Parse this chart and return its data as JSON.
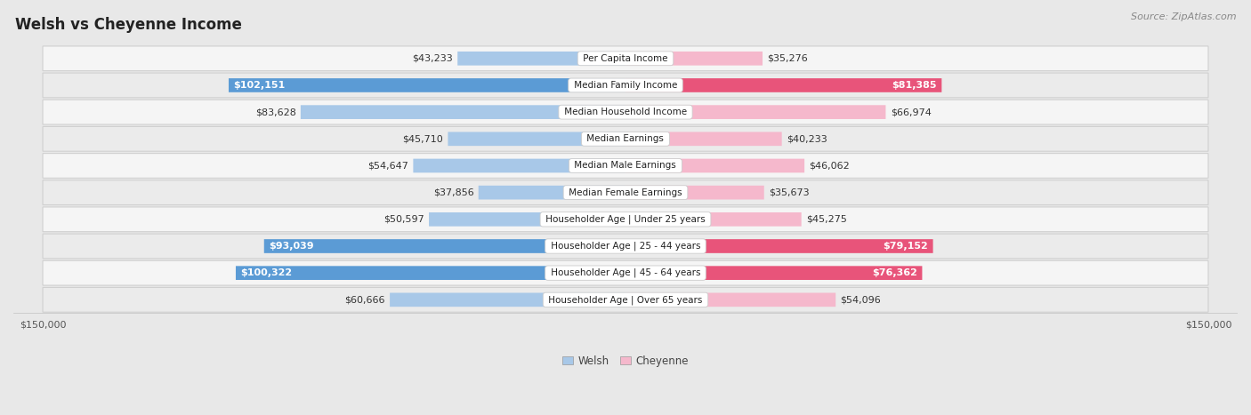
{
  "title": "Welsh vs Cheyenne Income",
  "source": "Source: ZipAtlas.com",
  "categories": [
    "Per Capita Income",
    "Median Family Income",
    "Median Household Income",
    "Median Earnings",
    "Median Male Earnings",
    "Median Female Earnings",
    "Householder Age | Under 25 years",
    "Householder Age | 25 - 44 years",
    "Householder Age | 45 - 64 years",
    "Householder Age | Over 65 years"
  ],
  "welsh_values": [
    43233,
    102151,
    83628,
    45710,
    54647,
    37856,
    50597,
    93039,
    100322,
    60666
  ],
  "cheyenne_values": [
    35276,
    81385,
    66974,
    40233,
    46062,
    35673,
    45275,
    79152,
    76362,
    54096
  ],
  "welsh_labels": [
    "$43,233",
    "$102,151",
    "$83,628",
    "$45,710",
    "$54,647",
    "$37,856",
    "$50,597",
    "$93,039",
    "$100,322",
    "$60,666"
  ],
  "cheyenne_labels": [
    "$35,276",
    "$81,385",
    "$66,974",
    "$40,233",
    "$46,062",
    "$35,673",
    "$45,275",
    "$79,152",
    "$76,362",
    "$54,096"
  ],
  "welsh_color_light": "#a8c8e8",
  "welsh_color_dark": "#5b9bd5",
  "cheyenne_color_light": "#f5b8cc",
  "cheyenne_color_dark": "#e8547a",
  "max_value": 150000,
  "fig_bg": "#e8e8e8",
  "row_bg_odd": "#f5f5f5",
  "row_bg_even": "#ebebeb",
  "title_fontsize": 12,
  "label_fontsize": 8,
  "cat_fontsize": 7.5,
  "axis_label_fontsize": 8,
  "legend_fontsize": 8.5,
  "source_fontsize": 8,
  "welsh_dark_rows": [
    1,
    7,
    8
  ],
  "cheyenne_dark_rows": [
    1,
    7,
    8
  ]
}
